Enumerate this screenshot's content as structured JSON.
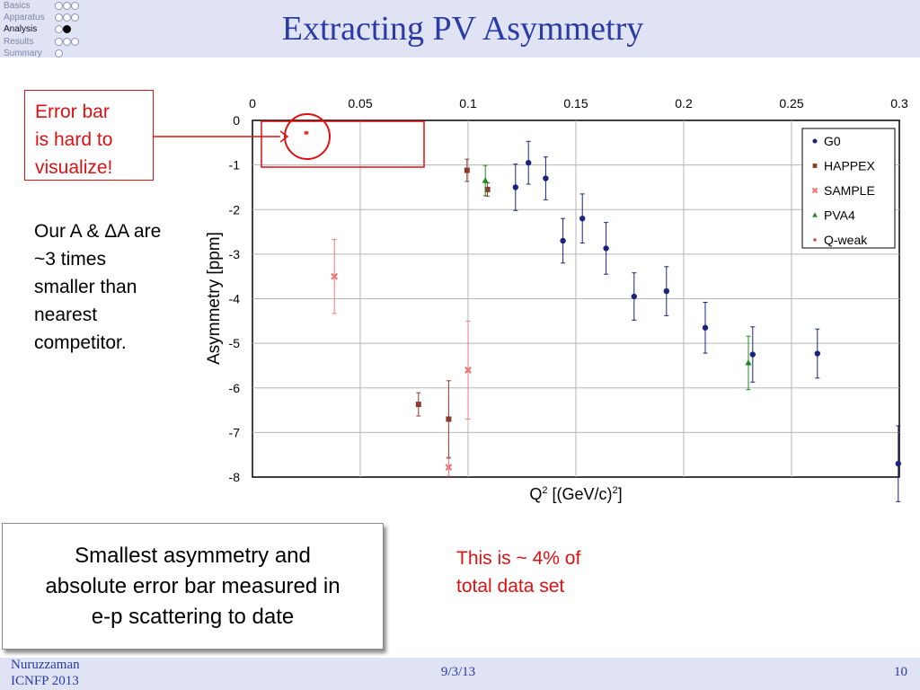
{
  "nav": {
    "items": [
      {
        "label": "Basics",
        "dots": [
          0,
          0,
          0
        ],
        "active": false
      },
      {
        "label": "Apparatus",
        "dots": [
          0,
          0,
          0
        ],
        "active": false
      },
      {
        "label": "Analysis",
        "dots": [
          0,
          1
        ],
        "active": true
      },
      {
        "label": "Results",
        "dots": [
          0,
          0,
          0
        ],
        "active": false
      },
      {
        "label": "Summary",
        "dots": [
          0
        ],
        "active": false
      }
    ]
  },
  "title": "Extracting PV Asymmetry",
  "callout": {
    "line1": "Error bar",
    "line2": "is hard to",
    "line3": "visualize!"
  },
  "side_note": {
    "line1": "Our A & ΔA are",
    "line2": "~3 times",
    "line3": "smaller than",
    "line4": "nearest",
    "line5": "competitor."
  },
  "claim_box": {
    "line1": "Smallest asymmetry and",
    "line2": "absolute error bar measured in",
    "line3": "e-p scattering to date"
  },
  "share_note": {
    "line1": "This is ~ 4% of",
    "line2": "total data set"
  },
  "chart_data": {
    "type": "scatter",
    "xlabel": "Q² [(GeV/c)²]",
    "ylabel": "Asymmetry [ppm]",
    "xlim": [
      0,
      0.3
    ],
    "ylim": [
      -8,
      0
    ],
    "x_ticks": [
      "0",
      "0.05",
      "0.1",
      "0.15",
      "0.2",
      "0.25",
      "0.3"
    ],
    "y_ticks": [
      "0",
      "-1",
      "-2",
      "-3",
      "-4",
      "-5",
      "-6",
      "-7",
      "-8"
    ],
    "grid": true,
    "legend_position": "top-right",
    "series": [
      {
        "name": "G0",
        "marker": "circle",
        "color": "#1a237e",
        "points": [
          {
            "x": 0.122,
            "y": -1.5,
            "err": 0.52
          },
          {
            "x": 0.128,
            "y": -0.95,
            "err": 0.48
          },
          {
            "x": 0.136,
            "y": -1.3,
            "err": 0.48
          },
          {
            "x": 0.144,
            "y": -2.7,
            "err": 0.5
          },
          {
            "x": 0.153,
            "y": -2.2,
            "err": 0.55
          },
          {
            "x": 0.164,
            "y": -2.87,
            "err": 0.58
          },
          {
            "x": 0.177,
            "y": -3.95,
            "err": 0.53
          },
          {
            "x": 0.192,
            "y": -3.83,
            "err": 0.55
          },
          {
            "x": 0.21,
            "y": -4.65,
            "err": 0.57
          },
          {
            "x": 0.232,
            "y": -5.25,
            "err": 0.62
          },
          {
            "x": 0.262,
            "y": -5.23,
            "err": 0.55
          },
          {
            "x": 0.2995,
            "y": -7.7,
            "err": 0.85
          }
        ]
      },
      {
        "name": "HAPPEX",
        "marker": "square",
        "color": "#8b3a2e",
        "points": [
          {
            "x": 0.0995,
            "y": -1.12,
            "err": 0.25
          },
          {
            "x": 0.109,
            "y": -1.55,
            "err": 0.15
          },
          {
            "x": 0.077,
            "y": -6.37,
            "err": 0.26
          },
          {
            "x": 0.091,
            "y": -6.7,
            "err": 0.86
          }
        ]
      },
      {
        "name": "SAMPLE",
        "marker": "cross",
        "color": "#f07878",
        "points": [
          {
            "x": 0.038,
            "y": -3.5,
            "err": 0.83
          },
          {
            "x": 0.091,
            "y": -7.78,
            "err": 0.2
          },
          {
            "x": 0.1,
            "y": -5.6,
            "err": 1.1
          }
        ]
      },
      {
        "name": "PVA4",
        "marker": "triangle",
        "color": "#1e8c1e",
        "points": [
          {
            "x": 0.108,
            "y": -1.35,
            "err": 0.34
          },
          {
            "x": 0.23,
            "y": -5.44,
            "err": 0.6
          }
        ]
      },
      {
        "name": "Q-weak",
        "marker": "star",
        "color": "#e53333",
        "points": [
          {
            "x": 0.025,
            "y": -0.28,
            "err": 0.02
          }
        ]
      }
    ]
  },
  "footer": {
    "author_line1": "Nuruzzaman",
    "author_line2": "ICNFP 2013",
    "date": "9/3/13",
    "page": "10"
  }
}
